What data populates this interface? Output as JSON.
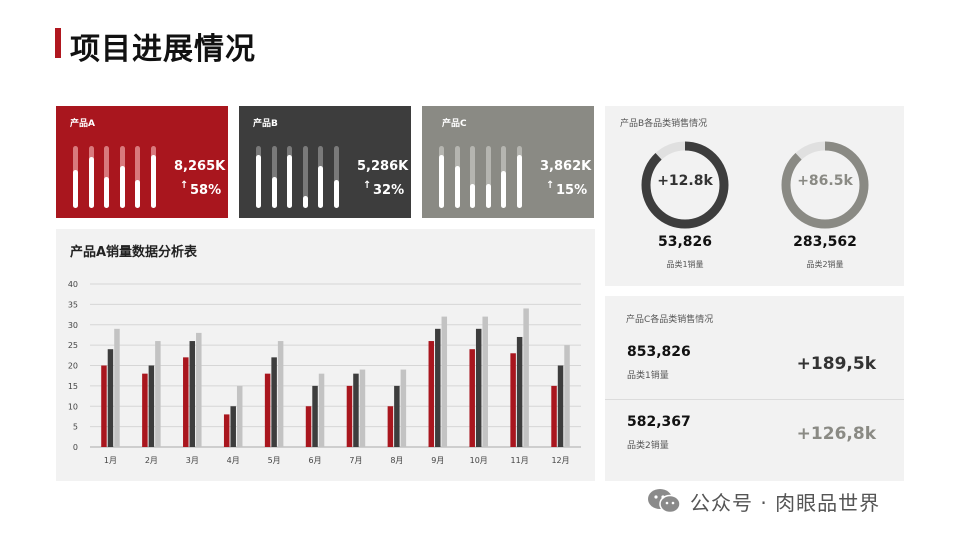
{
  "title": "项目进展情况",
  "cards": [
    {
      "name": "产品A",
      "value": "8,265K",
      "arrow": "↑",
      "pct": "58%",
      "bg": "#a9161e",
      "slot": "#d9797d",
      "fills": [
        0.62,
        0.82,
        0.5,
        0.68,
        0.45,
        0.85
      ]
    },
    {
      "name": "产品B",
      "value": "5,286K",
      "arrow": "↑",
      "pct": "32%",
      "bg": "#3d3d3d",
      "slot": "#7a7a7a",
      "fills": [
        0.86,
        0.5,
        0.86,
        0.2,
        0.68,
        0.45
      ]
    },
    {
      "name": "产品C",
      "value": "3,862K",
      "arrow": "↑",
      "pct": "15%",
      "bg": "#8a8a84",
      "slot": "#b5b5b0",
      "fills": [
        0.86,
        0.68,
        0.38,
        0.38,
        0.6,
        0.86
      ]
    }
  ],
  "chart_title": "产品A销量数据分析表",
  "chart_data": {
    "type": "bar",
    "categories": [
      "1月",
      "2月",
      "3月",
      "4月",
      "5月",
      "6月",
      "7月",
      "8月",
      "9月",
      "10月",
      "11月",
      "12月"
    ],
    "series": [
      {
        "values": [
          20,
          18,
          22,
          8,
          18,
          10,
          15,
          10,
          26,
          24,
          23,
          15
        ],
        "color": "#a9161e"
      },
      {
        "values": [
          24,
          20,
          26,
          10,
          22,
          15,
          18,
          15,
          29,
          29,
          27,
          20
        ],
        "color": "#3d3d3d"
      },
      {
        "values": [
          29,
          26,
          28,
          15,
          26,
          18,
          19,
          19,
          32,
          32,
          34,
          25
        ],
        "color": "#c3c3c3"
      }
    ],
    "yticks": [
      0,
      5,
      10,
      15,
      20,
      25,
      30,
      35,
      40
    ],
    "ylim": [
      0,
      40
    ],
    "grid": true
  },
  "panel_b": {
    "label": "产品B各品类销售情况",
    "items": [
      {
        "delta": "+12.8k",
        "total": "53,826",
        "label": "品类1销量",
        "ring": "#3d3d3d",
        "track": "#e0e0e0",
        "fraction": 0.88,
        "delta_color": "#333333"
      },
      {
        "delta": "+86.5k",
        "total": "283,562",
        "label": "品类2销量",
        "ring": "#8a8a84",
        "track": "#e0e0e0",
        "fraction": 0.88,
        "delta_color": "#8a8a84"
      }
    ]
  },
  "panel_c": {
    "label": "产品C各品类销售情况",
    "items": [
      {
        "total": "853,826",
        "label": "品类1销量",
        "delta": "+189,5k",
        "delta_color": "#333333"
      },
      {
        "total": "582,367",
        "label": "品类2销量",
        "delta": "+126,8k",
        "delta_color": "#8a8a84"
      }
    ]
  },
  "footer": {
    "text": "公众号 · 肉眼品世界",
    "icon": "wechat-icon"
  }
}
